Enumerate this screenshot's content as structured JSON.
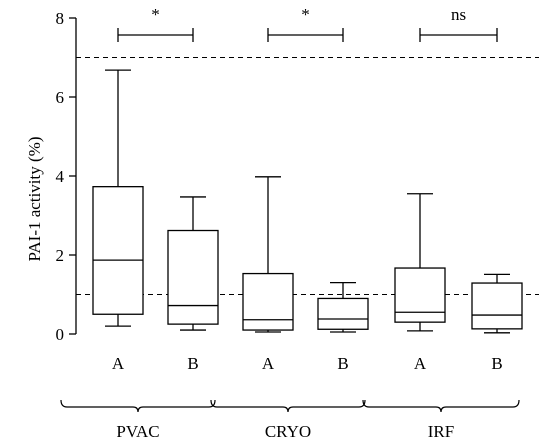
{
  "chart_data": {
    "type": "box",
    "ylabel": "PAI-1 activity (%)",
    "ylim": [
      0,
      8
    ],
    "yticks": [
      0,
      2,
      4,
      6,
      8
    ],
    "reference_lines": [
      7,
      1
    ],
    "groups": [
      {
        "name": "PVAC",
        "significance": "*",
        "boxes": [
          {
            "label": "A",
            "min": 0.2,
            "q1": 0.5,
            "median": 1.87,
            "q3": 3.73,
            "max": 6.68
          },
          {
            "label": "B",
            "min": 0.1,
            "q1": 0.25,
            "median": 0.72,
            "q3": 2.62,
            "max": 3.47
          }
        ]
      },
      {
        "name": "CRYO",
        "significance": "*",
        "boxes": [
          {
            "label": "A",
            "min": 0.05,
            "q1": 0.1,
            "median": 0.36,
            "q3": 1.53,
            "max": 3.98
          },
          {
            "label": "B",
            "min": 0.05,
            "q1": 0.12,
            "median": 0.38,
            "q3": 0.9,
            "max": 1.3
          }
        ]
      },
      {
        "name": "IRF",
        "significance": "ns",
        "boxes": [
          {
            "label": "A",
            "min": 0.08,
            "q1": 0.3,
            "median": 0.55,
            "q3": 1.67,
            "max": 3.55
          },
          {
            "label": "B",
            "min": 0.03,
            "q1": 0.13,
            "median": 0.48,
            "q3": 1.29,
            "max": 1.51
          }
        ]
      }
    ]
  }
}
